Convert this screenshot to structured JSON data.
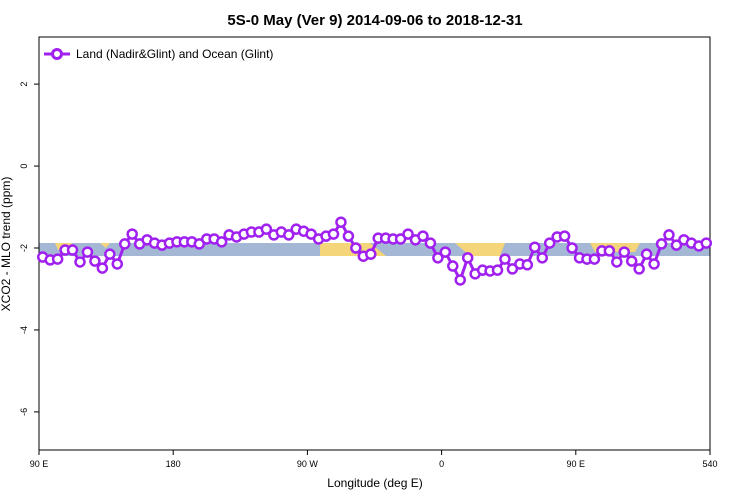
{
  "chart_data": {
    "type": "line",
    "title": "5S-0 May (Ver 9)   2014-09-06 to 2018-12-31",
    "x_label": "Longitude (deg E)",
    "y_label": "XCO2 - MLO trend (ppm)",
    "xlim": [
      90,
      540
    ],
    "ylim": [
      -6.93,
      3.15
    ],
    "xticks": [
      {
        "value": 90,
        "label": "90 E"
      },
      180,
      {
        "value": 270,
        "label": "90 W"
      },
      {
        "value": 360,
        "label": "0"
      },
      {
        "value": 450,
        "label": "90 E"
      },
      540
    ],
    "yticks": [
      2,
      0,
      -2,
      -4,
      -6
    ],
    "legend": "top-left",
    "x": [
      92.5,
      97.5,
      102.5,
      107.5,
      112.5,
      117.5,
      122.5,
      127.5,
      132.5,
      137.5,
      142.5,
      147.5,
      152.5,
      157.5,
      162.5,
      167.5,
      172.5,
      177.5,
      182.5,
      187.5,
      192.5,
      197.5,
      202.5,
      207.5,
      212.5,
      217.5,
      222.5,
      227.5,
      232.5,
      237.5,
      242.5,
      247.5,
      252.5,
      257.5,
      262.5,
      267.5,
      272.5,
      277.5,
      282.5,
      287.5,
      292.5,
      297.5,
      302.5,
      307.5,
      312.5,
      317.5,
      322.5,
      327.5,
      332.5,
      337.5,
      342.5,
      347.5,
      352.5,
      357.5,
      362.5,
      367.5,
      372.5,
      377.5,
      382.5,
      387.5,
      392.5,
      397.5,
      402.5,
      407.5,
      412.5,
      417.5,
      422.5,
      427.5,
      432.5,
      437.5,
      442.5,
      447.5,
      452.5,
      457.5,
      462.5,
      467.5,
      472.5,
      477.5,
      482.5,
      487.5,
      492.5,
      497.5,
      502.5,
      507.5,
      512.5,
      517.5,
      522.5,
      527.5,
      532.5,
      537.5
    ],
    "series": [
      {
        "name": "Land (Nadir&Glint) and Ocean (Glint)",
        "color": "#a020f0",
        "values": [
          -2.22,
          -2.29,
          -2.27,
          -2.05,
          -2.05,
          -2.34,
          -2.1,
          -2.32,
          -2.49,
          -2.15,
          -2.39,
          -1.9,
          -1.66,
          -1.9,
          -1.8,
          -1.88,
          -1.93,
          -1.88,
          -1.85,
          -1.85,
          -1.85,
          -1.9,
          -1.78,
          -1.78,
          -1.85,
          -1.68,
          -1.73,
          -1.66,
          -1.61,
          -1.61,
          -1.54,
          -1.68,
          -1.61,
          -1.68,
          -1.54,
          -1.59,
          -1.66,
          -1.78,
          -1.71,
          -1.66,
          -1.37,
          -1.71,
          -2.0,
          -2.2,
          -2.15,
          -1.76,
          -1.76,
          -1.78,
          -1.78,
          -1.66,
          -1.8,
          -1.71,
          -1.88,
          -2.24,
          -2.1,
          -2.44,
          -2.78,
          -2.24,
          -2.63,
          -2.54,
          -2.56,
          -2.54,
          -2.27,
          -2.51,
          -2.39,
          -2.41,
          -1.98,
          -2.24,
          -1.88,
          -1.73,
          -1.71,
          -2.0,
          -2.24,
          -2.27,
          -2.27,
          -2.07,
          -2.07,
          -2.34,
          -2.1,
          -2.32,
          -2.51,
          -2.15,
          -2.39,
          -1.9,
          -1.68,
          -1.93,
          -1.8,
          -1.88,
          -1.95,
          -1.88
        ]
      }
    ]
  }
}
